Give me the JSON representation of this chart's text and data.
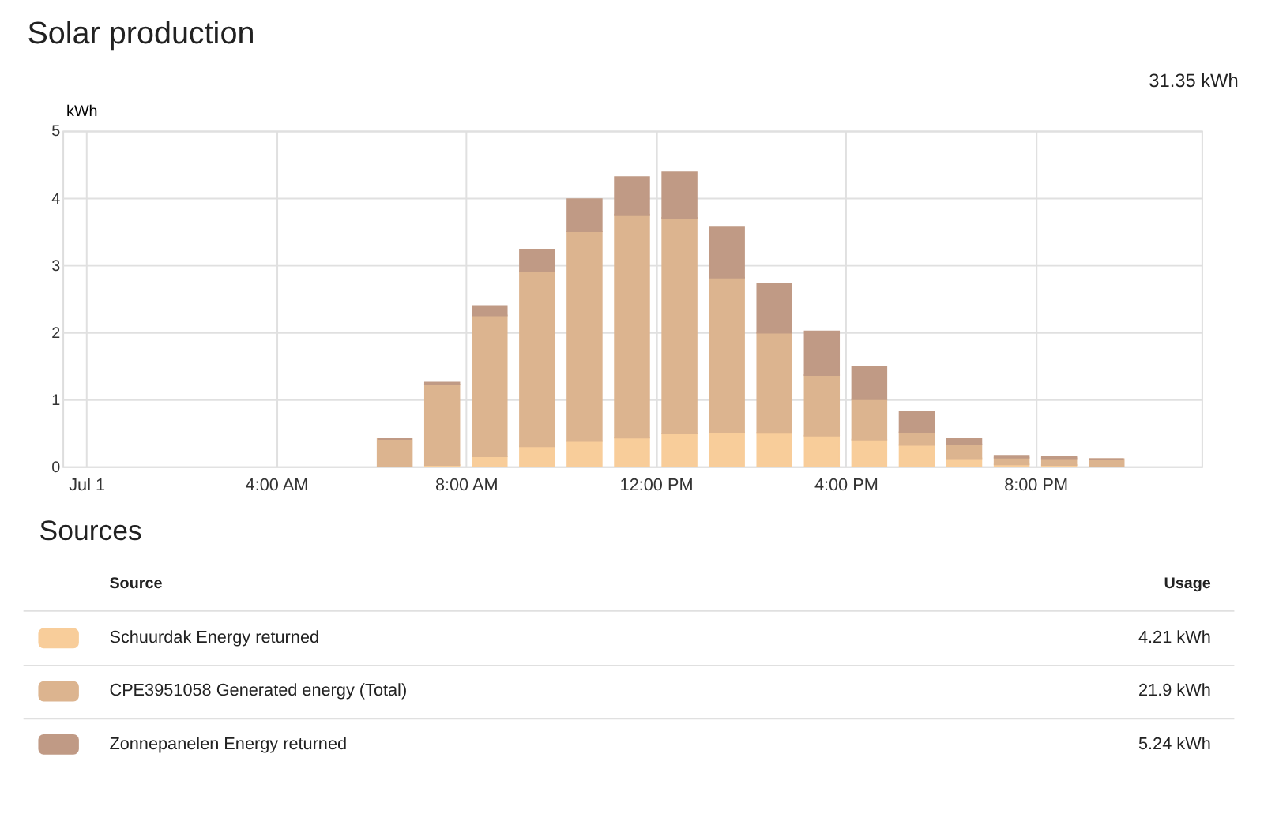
{
  "chart_data": {
    "type": "bar",
    "title": "Solar production",
    "ylabel": "kWh",
    "stacked": true,
    "x": [
      6.5,
      7.5,
      8.5,
      9.5,
      10.5,
      11.5,
      12.5,
      13.5,
      14.5,
      15.5,
      16.5,
      17.5,
      18.5,
      19.5,
      20.5,
      21.5
    ],
    "series": [
      {
        "name": "Schuurdak Energy returned",
        "color": "#f8cd9a",
        "values": [
          0,
          0.02,
          0.15,
          0.3,
          0.38,
          0.43,
          0.49,
          0.51,
          0.5,
          0.46,
          0.4,
          0.32,
          0.12,
          0.03,
          0.02,
          0
        ]
      },
      {
        "name": "CPE3951058 Generated energy (Total)",
        "color": "#dcb48f",
        "values": [
          0.41,
          1.2,
          2.1,
          2.61,
          3.12,
          3.32,
          3.21,
          2.3,
          1.49,
          0.9,
          0.6,
          0.19,
          0.21,
          0.1,
          0.1,
          0.11
        ]
      },
      {
        "name": "Zonnepanelen Energy returned",
        "color": "#c09a85",
        "values": [
          0,
          0.03,
          0.14,
          0.32,
          0.48,
          0.56,
          0.68,
          0.76,
          0.73,
          0.65,
          0.49,
          0.31,
          0.08,
          0.03,
          0.02,
          0
        ]
      }
    ],
    "xlim": [
      -0.5,
      23.5
    ],
    "xticks": [
      {
        "value": 0,
        "label": "Jul 1"
      },
      {
        "value": 4,
        "label": "4:00 AM"
      },
      {
        "value": 8,
        "label": "8:00 AM"
      },
      {
        "value": 12,
        "label": "12:00 PM"
      },
      {
        "value": 16,
        "label": "4:00 PM"
      },
      {
        "value": 20,
        "label": "8:00 PM"
      }
    ],
    "ylim": [
      0,
      5
    ],
    "yticks": [
      0,
      1,
      2,
      3,
      4,
      5
    ],
    "grid": true,
    "legend": "bottom",
    "annotations": [
      "31.35 kWh",
      "Sources",
      "Source",
      "Usage",
      "4.21 kWh",
      "21.9 kWh",
      "5.24 kWh"
    ]
  }
}
